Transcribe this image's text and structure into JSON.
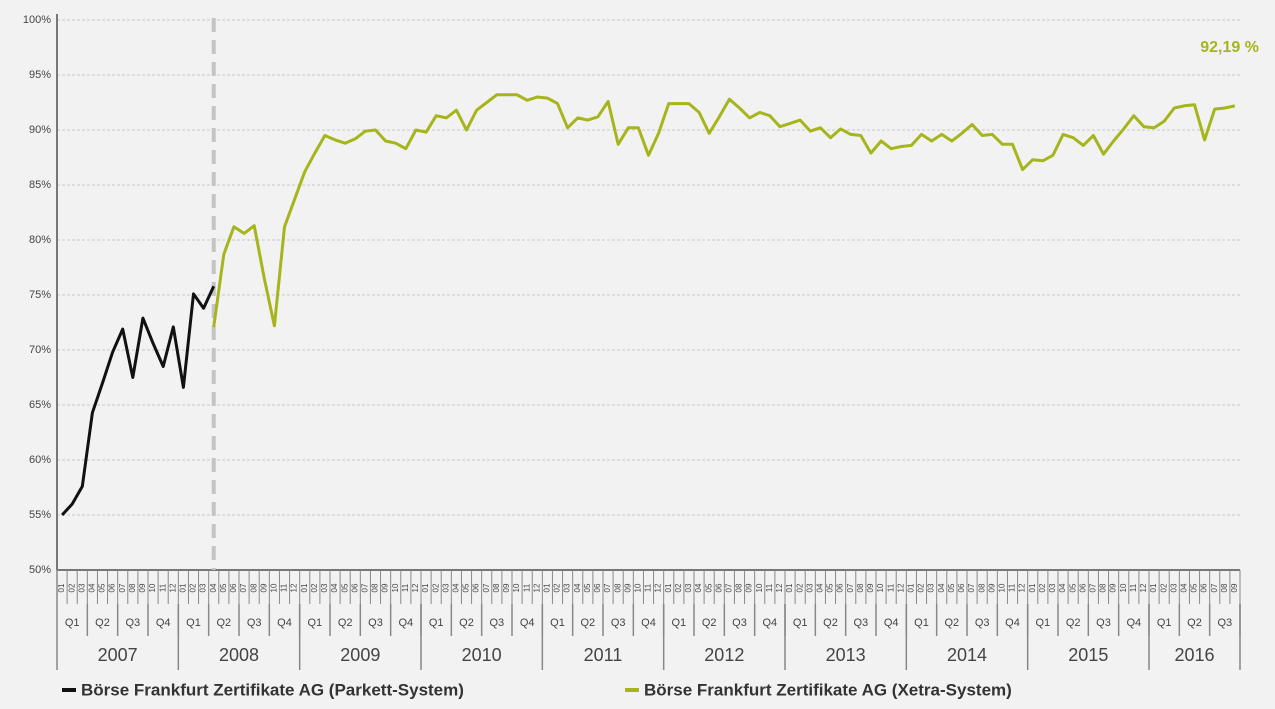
{
  "chart_data": {
    "type": "line",
    "categories": [
      "01",
      "02",
      "03",
      "04",
      "05",
      "06",
      "07",
      "08",
      "09",
      "10",
      "11",
      "12",
      "01",
      "02",
      "03",
      "04",
      "05",
      "06",
      "07",
      "08",
      "09",
      "10",
      "11",
      "12",
      "01",
      "02",
      "03",
      "04",
      "05",
      "06",
      "07",
      "08",
      "09",
      "10",
      "11",
      "12",
      "01",
      "02",
      "03",
      "04",
      "05",
      "06",
      "07",
      "08",
      "09",
      "10",
      "11",
      "12",
      "01",
      "02",
      "03",
      "04",
      "05",
      "06",
      "07",
      "08",
      "09",
      "10",
      "11",
      "12",
      "01",
      "02",
      "03",
      "04",
      "05",
      "06",
      "07",
      "08",
      "09",
      "10",
      "11",
      "12",
      "01",
      "02",
      "03",
      "04",
      "05",
      "06",
      "07",
      "08",
      "09",
      "10",
      "11",
      "12",
      "01",
      "02",
      "03",
      "04",
      "05",
      "06",
      "07",
      "08",
      "09",
      "10",
      "11",
      "12",
      "01",
      "02",
      "03",
      "04",
      "05",
      "06",
      "07",
      "08",
      "09",
      "10",
      "11",
      "12",
      "01",
      "02",
      "03",
      "04",
      "05",
      "06",
      "07",
      "08",
      "09"
    ],
    "quarters": [
      "Q1",
      "Q2",
      "Q3",
      "Q4",
      "Q1",
      "Q2",
      "Q3",
      "Q4",
      "Q1",
      "Q2",
      "Q3",
      "Q4",
      "Q1",
      "Q2",
      "Q3",
      "Q4",
      "Q1",
      "Q2",
      "Q3",
      "Q4",
      "Q1",
      "Q2",
      "Q3",
      "Q4",
      "Q1",
      "Q2",
      "Q3",
      "Q4",
      "Q1",
      "Q2",
      "Q3",
      "Q4",
      "Q1",
      "Q2",
      "Q3",
      "Q4",
      "Q1",
      "Q2",
      "Q3"
    ],
    "years": [
      "2007",
      "2008",
      "2009",
      "2010",
      "2011",
      "2012",
      "2013",
      "2014",
      "2015",
      "2016"
    ],
    "series": [
      {
        "name": "Börse Frankfurt Zertifikate AG (Parkett-System)",
        "color": "#111111",
        "values": [
          55.0,
          56.0,
          57.6,
          64.3,
          67.0,
          69.8,
          71.9,
          67.5,
          72.9,
          70.6,
          68.5,
          72.1,
          66.6,
          75.1,
          73.8,
          75.8,
          null,
          null,
          null,
          null,
          null,
          null,
          null,
          null,
          null,
          null,
          null,
          null,
          null,
          null,
          null,
          null,
          null,
          null,
          null,
          null,
          null,
          null,
          null,
          null,
          null,
          null,
          null,
          null,
          null,
          null,
          null,
          null,
          null,
          null,
          null,
          null,
          null,
          null,
          null,
          null,
          null,
          null,
          null,
          null,
          null,
          null,
          null,
          null,
          null,
          null,
          null,
          null,
          null,
          null,
          null,
          null,
          null,
          null,
          null,
          null,
          null,
          null,
          null,
          null,
          null,
          null,
          null,
          null,
          null,
          null,
          null,
          null,
          null,
          null,
          null,
          null,
          null,
          null,
          null,
          null,
          null,
          null,
          null,
          null,
          null,
          null,
          null,
          null,
          null,
          null,
          null,
          null,
          null,
          null,
          null,
          null,
          null,
          null,
          null,
          null,
          null
        ]
      },
      {
        "name": "Börse Frankfurt Zertifikate AG (Xetra-System)",
        "color": "#a5b51b",
        "values": [
          null,
          null,
          null,
          null,
          null,
          null,
          null,
          null,
          null,
          null,
          null,
          null,
          null,
          null,
          null,
          72.1,
          78.7,
          81.2,
          80.6,
          81.3,
          76.5,
          72.2,
          81.2,
          83.7,
          86.2,
          87.9,
          89.5,
          89.1,
          88.8,
          89.2,
          89.9,
          90.0,
          89.0,
          88.8,
          88.3,
          90.0,
          89.8,
          91.3,
          91.1,
          91.8,
          90.0,
          91.8,
          92.5,
          93.2,
          93.2,
          93.2,
          92.7,
          93.0,
          92.9,
          92.4,
          90.2,
          91.1,
          90.9,
          91.2,
          92.6,
          88.7,
          90.2,
          90.2,
          87.7,
          89.7,
          92.4,
          92.4,
          92.4,
          91.6,
          89.7,
          91.2,
          92.8,
          92.0,
          91.1,
          91.6,
          91.3,
          90.3,
          90.6,
          90.9,
          89.9,
          90.2,
          89.3,
          90.1,
          89.6,
          89.5,
          87.9,
          89.0,
          88.3,
          88.5,
          88.6,
          89.6,
          89.0,
          89.6,
          89.0,
          89.7,
          90.5,
          89.5,
          89.6,
          88.7,
          88.7,
          86.4,
          87.3,
          87.2,
          87.7,
          89.6,
          89.3,
          88.6,
          89.5,
          87.8,
          89.0,
          90.1,
          91.3,
          90.3,
          90.2,
          90.8,
          92.0,
          92.2,
          92.3,
          89.1,
          91.9,
          92.0,
          92.19
        ],
        "value_labels": [
          null,
          null,
          null,
          null,
          null,
          null,
          null,
          null,
          null,
          null,
          null,
          null,
          null,
          null,
          null,
          null,
          null,
          null,
          null,
          null,
          null,
          null,
          null,
          null,
          null,
          null,
          null,
          null,
          null,
          null,
          null,
          null,
          null,
          null,
          null,
          null,
          null,
          null,
          null,
          null,
          null,
          null,
          null,
          null,
          null,
          null,
          null,
          null,
          null,
          null,
          null,
          null,
          null,
          null,
          null,
          null,
          null,
          null,
          null,
          null,
          null,
          null,
          null,
          null,
          null,
          null,
          null,
          null,
          null,
          null,
          null,
          null,
          null,
          null,
          null,
          null,
          null,
          null,
          null,
          null,
          null,
          null,
          null,
          null,
          null,
          null,
          null,
          null,
          null,
          null,
          null,
          null,
          null,
          null,
          null,
          null,
          null,
          null,
          null,
          null,
          null,
          null,
          null,
          null,
          null,
          null,
          null,
          null,
          null,
          null,
          null,
          null,
          null,
          null,
          null,
          null,
          "92,19 %"
        ]
      }
    ],
    "ylim": [
      50,
      100
    ],
    "yticks": [
      {
        "value": 50,
        "label": "50%"
      },
      {
        "value": 55,
        "label": "55%"
      },
      {
        "value": 60,
        "label": "60%"
      },
      {
        "value": 65,
        "label": "65%"
      },
      {
        "value": 70,
        "label": "70%"
      },
      {
        "value": 75,
        "label": "75%"
      },
      {
        "value": 80,
        "label": "80%"
      },
      {
        "value": 85,
        "label": "85%"
      },
      {
        "value": 90,
        "label": "90%"
      },
      {
        "value": 95,
        "label": "95%"
      },
      {
        "value": 100,
        "label": "100%"
      }
    ],
    "grid": true
  }
}
